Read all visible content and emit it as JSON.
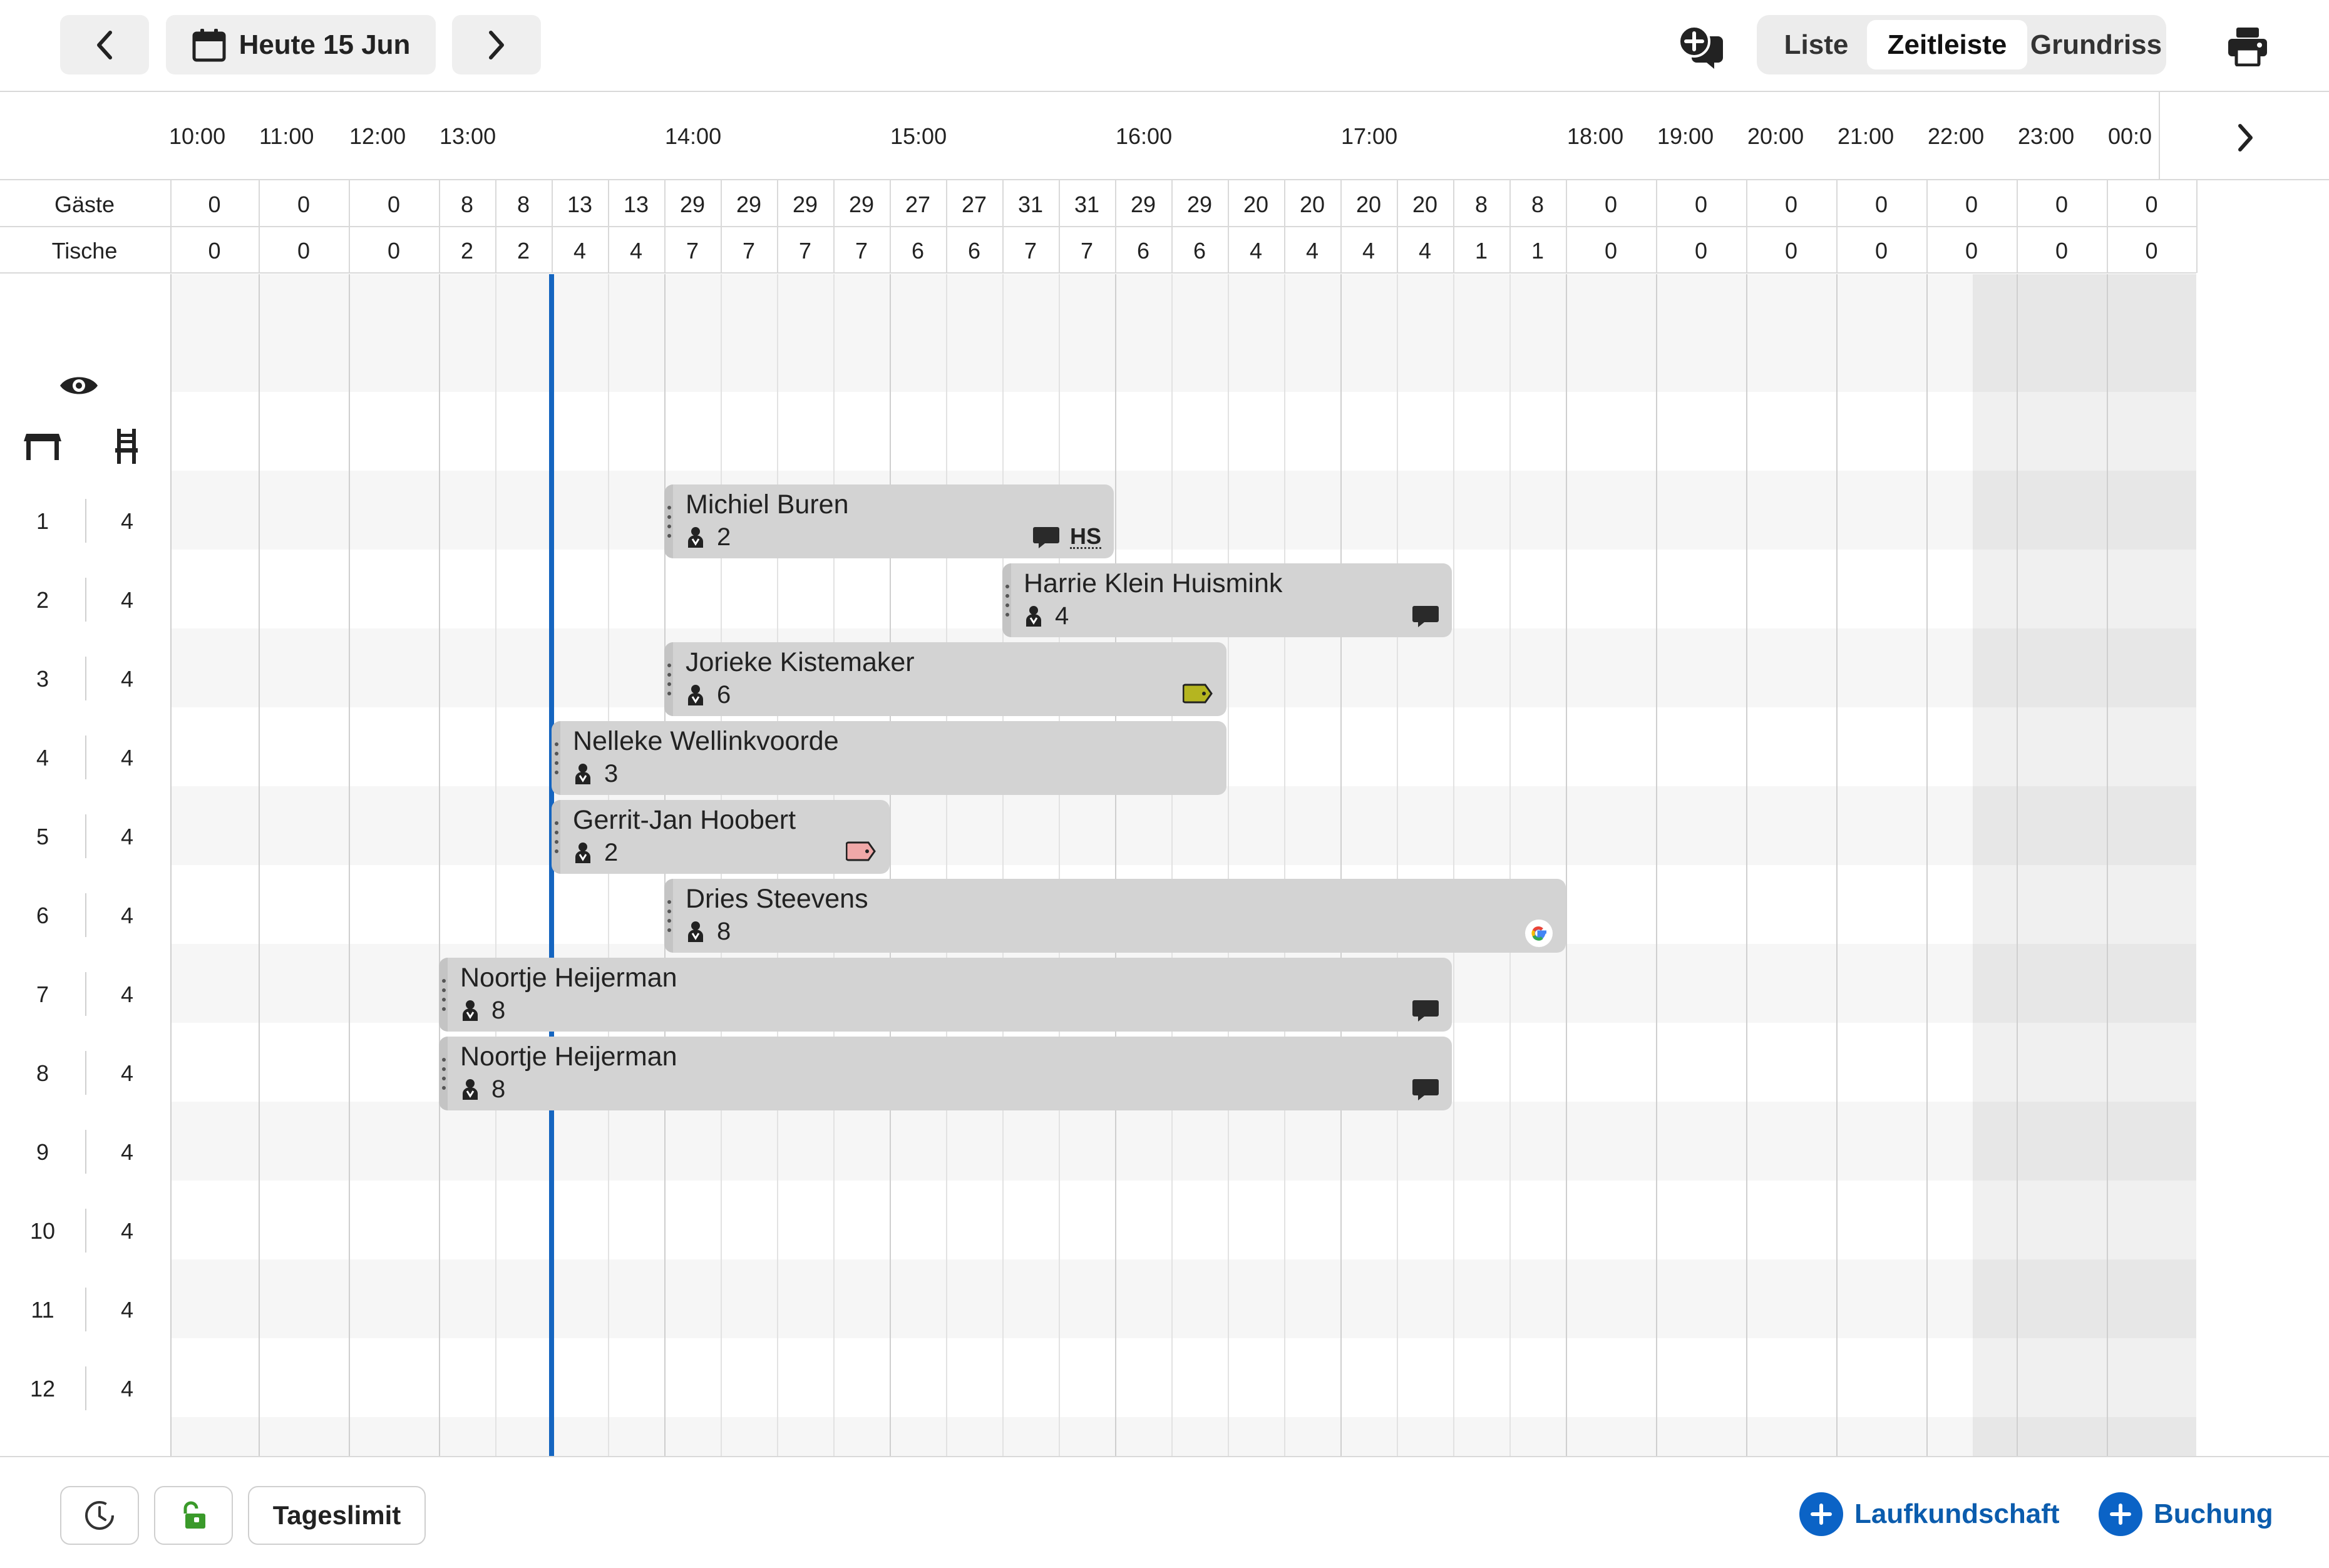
{
  "header": {
    "date_label": "Heute 15 Jun",
    "views": [
      "Liste",
      "Zeitleiste",
      "Grundriss"
    ],
    "active_view": "Zeitleiste"
  },
  "timeline": {
    "hours": [
      "10:00",
      "11:00",
      "12:00",
      "13:00",
      "14:00",
      "15:00",
      "16:00",
      "17:00",
      "18:00",
      "19:00",
      "20:00",
      "21:00",
      "22:00",
      "23:00",
      "00:0"
    ]
  },
  "counts": {
    "guests_label": "Gäste",
    "tables_label": "Tische",
    "guests": [
      "0",
      "0",
      "0",
      "8",
      "8",
      "13",
      "13",
      "29",
      "29",
      "29",
      "29",
      "27",
      "27",
      "31",
      "31",
      "29",
      "29",
      "20",
      "20",
      "20",
      "20",
      "8",
      "8",
      "0",
      "0",
      "0",
      "0",
      "0",
      "0",
      "0"
    ],
    "tables": [
      "0",
      "0",
      "0",
      "2",
      "2",
      "4",
      "4",
      "7",
      "7",
      "7",
      "7",
      "6",
      "6",
      "7",
      "7",
      "6",
      "6",
      "4",
      "4",
      "4",
      "4",
      "1",
      "1",
      "0",
      "0",
      "0",
      "0",
      "0",
      "0",
      "0"
    ]
  },
  "tables": [
    {
      "number": "1",
      "capacity": "4"
    },
    {
      "number": "2",
      "capacity": "4"
    },
    {
      "number": "3",
      "capacity": "4"
    },
    {
      "number": "4",
      "capacity": "4"
    },
    {
      "number": "5",
      "capacity": "4"
    },
    {
      "number": "6",
      "capacity": "4"
    },
    {
      "number": "7",
      "capacity": "4"
    },
    {
      "number": "8",
      "capacity": "4"
    },
    {
      "number": "9",
      "capacity": "4"
    },
    {
      "number": "10",
      "capacity": "4"
    },
    {
      "number": "11",
      "capacity": "4"
    },
    {
      "number": "12",
      "capacity": "4"
    }
  ],
  "bookings": [
    {
      "name": "Michiel Buren",
      "guests": "2",
      "badge": "HS",
      "icons": [
        "comment-icon"
      ]
    },
    {
      "name": "Harrie Klein Huismink",
      "guests": "4",
      "icons": [
        "comment-icon"
      ]
    },
    {
      "name": "Jorieke Kistemaker",
      "guests": "6",
      "icons": [
        "tag-icon"
      ],
      "tag_color": "#b5b520"
    },
    {
      "name": "Nelleke Wellinkvoorde",
      "guests": "3",
      "icons": []
    },
    {
      "name": "Gerrit-Jan Hoobert",
      "guests": "2",
      "icons": [
        "tag-icon"
      ],
      "tag_color": "#f0a8a8"
    },
    {
      "name": "Dries Steevens",
      "guests": "8",
      "icons": [
        "google-icon"
      ]
    },
    {
      "name": "Noortje Heijerman",
      "guests": "8",
      "icons": [
        "comment-icon"
      ]
    },
    {
      "name": "Noortje Heijerman",
      "guests": "8",
      "icons": [
        "comment-icon"
      ]
    }
  ],
  "footer": {
    "day_limit_label": "Tageslimit",
    "walk_in_label": "Laufkundschaft",
    "booking_label": "Buchung"
  },
  "colors": {
    "accent": "#0b63c6",
    "now_line": "#1565c0",
    "booking_bg": "#d3d3d3",
    "lock_green": "#3a9a2a"
  }
}
